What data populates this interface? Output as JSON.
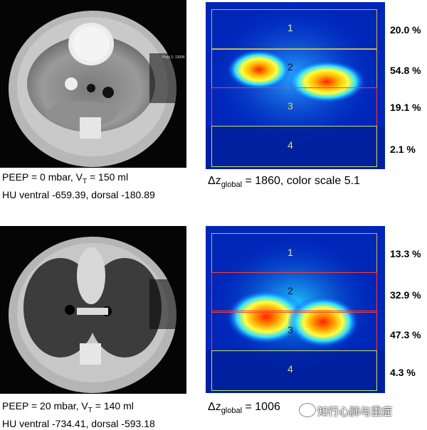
{
  "top": {
    "ct_caption_line1_prefix": "PEEP = 0 mbar, V",
    "ct_caption_line1_sub": "T",
    "ct_caption_line1_suffix": " = 150 ml",
    "ct_caption_line2": "HU ventral -659.39, dorsal -180.89",
    "eit_caption_prefix": "Δz",
    "eit_caption_sub": "global",
    "eit_caption_suffix": " = 1860, color scale 5.1",
    "regions": [
      {
        "label": "1",
        "percent": "20.0 %",
        "color": "#c8b84a"
      },
      {
        "label": "2",
        "percent": "54.8 %",
        "color": "#ff3b2f"
      },
      {
        "label": "3",
        "percent": "19.1 %",
        "color": "#ff3b2f"
      },
      {
        "label": "4",
        "percent": "2.1 %",
        "color": "#c8e25a"
      }
    ]
  },
  "bottom": {
    "ct_caption_line1_prefix": "PEEP = 20 mbar, V",
    "ct_caption_line1_sub": "T",
    "ct_caption_line1_suffix": " = 140 ml",
    "ct_caption_line2": "HU ventral -734.41, dorsal -593.18",
    "eit_caption_prefix": "Δz",
    "eit_caption_sub": "global",
    "eit_caption_suffix": " = 1006",
    "regions": [
      {
        "label": "1",
        "percent": "13.3 %",
        "color": "#c8b84a"
      },
      {
        "label": "2",
        "percent": "32.9 %",
        "color": "#ff3b2f"
      },
      {
        "label": "3",
        "percent": "47.3 %",
        "color": "#ff3b2f"
      },
      {
        "label": "4",
        "percent": "4.3 %",
        "color": "#c8e25a"
      }
    ]
  },
  "watermark": "知行心肺与重症"
}
